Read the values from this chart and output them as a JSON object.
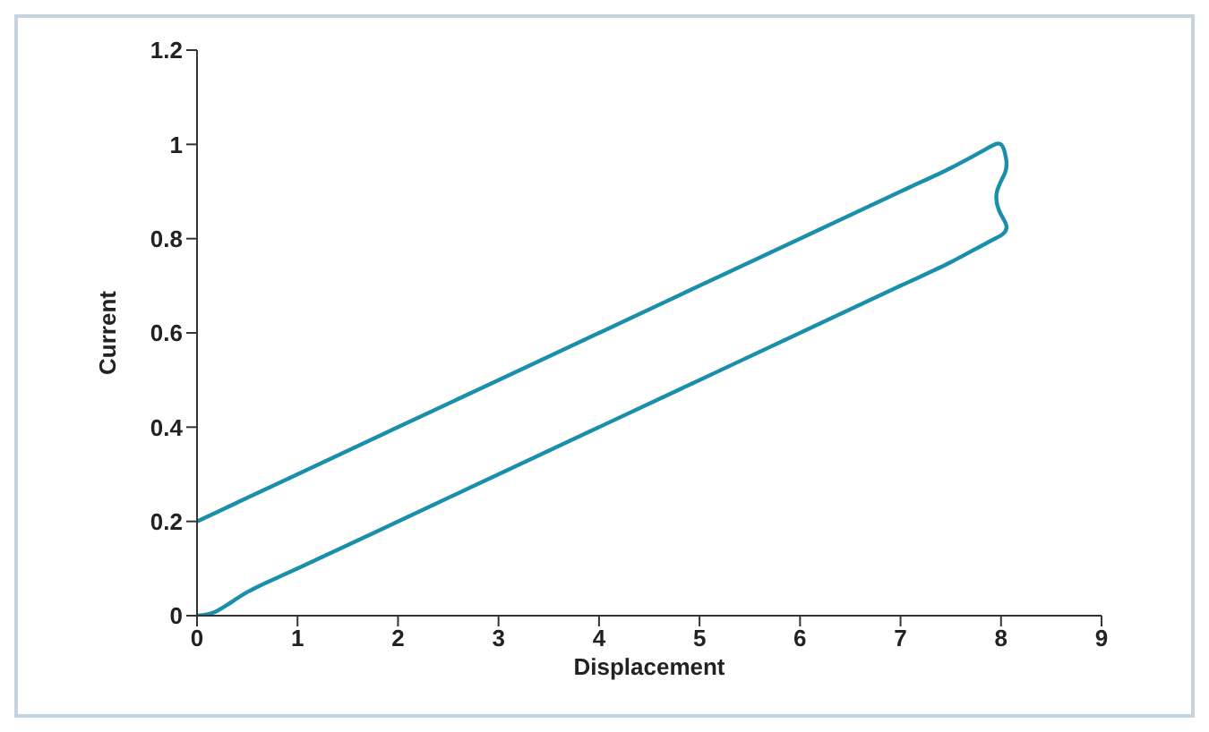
{
  "chart_data": {
    "type": "line",
    "xlabel": "Displacement",
    "ylabel": "Current",
    "xlim": [
      0,
      9
    ],
    "xticks": [
      0,
      1,
      2,
      3,
      4,
      5,
      6,
      7,
      8,
      9
    ],
    "ylim": [
      0,
      1.2
    ],
    "yticks": [
      0,
      0.2,
      0.4,
      0.6,
      0.8,
      1,
      1.2
    ],
    "marker": "none",
    "line_style": "solid",
    "series": [
      {
        "color": "#1a8fab",
        "x": [
          0,
          0.2,
          0.5,
          1,
          2,
          3,
          4,
          5,
          6,
          7,
          7.5,
          7.85,
          8.02,
          8.05,
          7.98,
          7.96,
          8.04,
          8.05,
          8.0,
          7.85,
          7.5,
          7,
          6,
          5,
          4,
          3,
          2,
          1,
          0.5,
          0.2,
          0
        ],
        "values": [
          0,
          0.01,
          0.05,
          0.1,
          0.2,
          0.3,
          0.4,
          0.5,
          0.6,
          0.7,
          0.75,
          0.79,
          0.81,
          0.83,
          0.86,
          0.9,
          0.94,
          0.97,
          1.0,
          0.99,
          0.95,
          0.9,
          0.8,
          0.7,
          0.6,
          0.5,
          0.4,
          0.3,
          0.25,
          0.22,
          0.2
        ]
      }
    ]
  }
}
